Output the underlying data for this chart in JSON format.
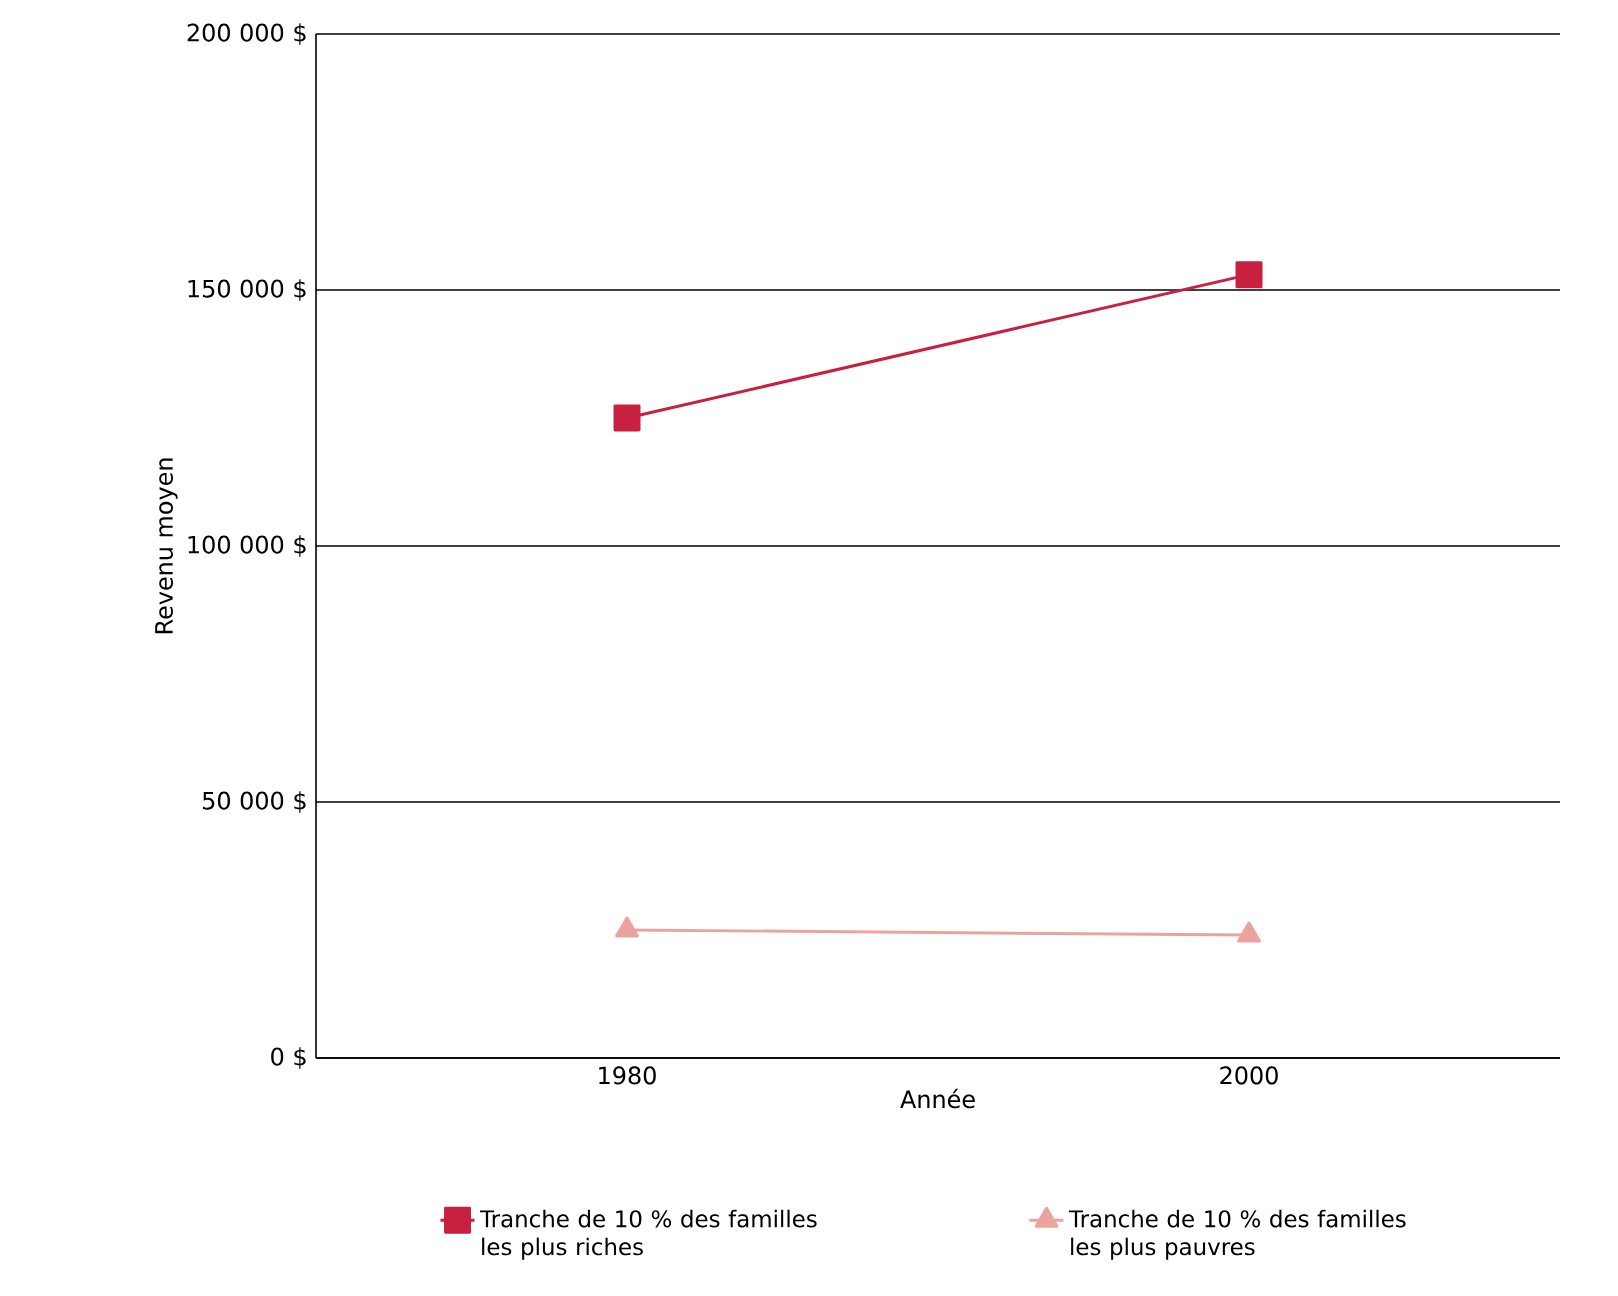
{
  "chart_data": {
    "type": "line",
    "xlabel": "Année",
    "ylabel": "Revenu moyen",
    "categories": [
      "1980",
      "2000"
    ],
    "series": [
      {
        "name": "Tranche de 10 % des familles les plus riches",
        "color": "#c8203f",
        "marker": "square",
        "values": [
          125000,
          153000
        ]
      },
      {
        "name": "Tranche de 10 % des familles les plus pauvres",
        "color": "#eaa39d",
        "marker": "triangle",
        "values": [
          25000,
          24000
        ]
      }
    ],
    "ylim": [
      0,
      200000
    ],
    "yticks": [
      {
        "value": 0,
        "label": "0 $"
      },
      {
        "value": 50000,
        "label": "50 000 $"
      },
      {
        "value": 100000,
        "label": "100 000 $"
      },
      {
        "value": 150000,
        "label": "150 000 $"
      },
      {
        "value": 200000,
        "label": "200 000 $"
      }
    ],
    "grid": "y",
    "legend": "bottom"
  }
}
